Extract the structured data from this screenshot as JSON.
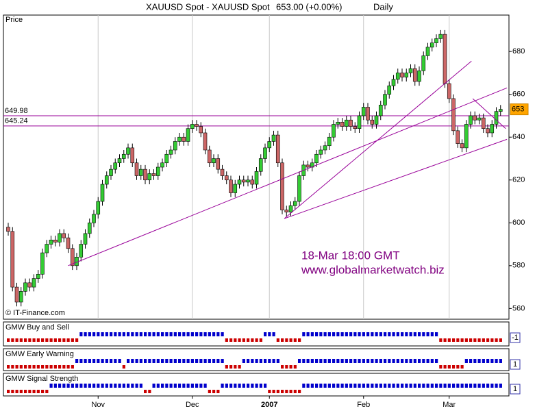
{
  "chart_data": {
    "type": "candlestick",
    "title": "XAUUSD Spot - XAUUSD Spot",
    "last_quote": "653.00 (+0.00%)",
    "period": "Daily",
    "panel_label": "Price",
    "copyright": "© IT-Finance.com",
    "annotations": [
      "18-Mar 18:00 GMT",
      "www.globalmarketwatch.biz"
    ],
    "categories": [
      null,
      null,
      null,
      null,
      null,
      null,
      null,
      null,
      null,
      null,
      null,
      null,
      null,
      null,
      null,
      null,
      null,
      null,
      null,
      null,
      null,
      "Nov",
      null,
      null,
      null,
      null,
      null,
      null,
      null,
      null,
      null,
      null,
      null,
      null,
      null,
      null,
      null,
      null,
      null,
      null,
      null,
      null,
      null,
      "Dec",
      null,
      null,
      null,
      null,
      null,
      null,
      null,
      null,
      null,
      null,
      null,
      null,
      null,
      null,
      null,
      null,
      null,
      "2007",
      null,
      null,
      null,
      null,
      null,
      null,
      null,
      null,
      null,
      null,
      null,
      null,
      null,
      null,
      null,
      null,
      null,
      null,
      null,
      null,
      null,
      "Feb",
      null,
      null,
      null,
      null,
      null,
      null,
      null,
      null,
      null,
      null,
      null,
      null,
      null,
      null,
      null,
      null,
      null,
      null,
      null,
      "Mar",
      null,
      null,
      null,
      null,
      null,
      null,
      null,
      null,
      null,
      null,
      null,
      null
    ],
    "open": [
      598,
      596,
      570,
      563,
      568,
      572,
      570,
      574,
      576,
      586,
      590,
      592,
      591,
      595,
      593,
      588,
      580,
      584,
      590,
      595,
      600,
      604,
      610,
      618,
      622,
      625,
      628,
      630,
      632,
      635,
      628,
      622,
      625,
      620,
      623,
      622,
      626,
      628,
      632,
      634,
      638,
      640,
      638,
      644,
      646,
      645,
      642,
      634,
      628,
      630,
      625,
      622,
      620,
      614,
      618,
      620,
      619,
      620,
      618,
      624,
      630,
      635,
      638,
      641,
      628,
      606,
      605,
      608,
      610,
      622,
      627,
      626,
      628,
      632,
      634,
      636,
      640,
      646,
      647,
      645,
      648,
      645,
      644,
      650,
      654,
      648,
      646,
      650,
      655,
      660,
      664,
      667,
      670,
      668,
      670,
      672,
      666,
      671,
      678,
      682,
      684,
      686,
      688,
      665,
      658,
      643,
      637,
      635,
      646,
      650,
      648,
      649,
      644,
      642,
      646,
      652
    ],
    "high": [
      600,
      598,
      572,
      570,
      574,
      574,
      576,
      578,
      588,
      592,
      594,
      594,
      597,
      597,
      595,
      590,
      586,
      592,
      597,
      602,
      606,
      612,
      620,
      624,
      627,
      630,
      632,
      634,
      637,
      637,
      630,
      627,
      627,
      625,
      625,
      628,
      630,
      634,
      636,
      640,
      642,
      642,
      646,
      648,
      648,
      647,
      644,
      636,
      632,
      632,
      627,
      624,
      622,
      620,
      622,
      622,
      622,
      622,
      626,
      632,
      637,
      640,
      643,
      643,
      630,
      608,
      610,
      612,
      624,
      629,
      629,
      630,
      634,
      636,
      638,
      642,
      648,
      649,
      649,
      650,
      650,
      647,
      652,
      656,
      656,
      650,
      652,
      657,
      662,
      666,
      669,
      672,
      672,
      672,
      674,
      674,
      673,
      680,
      684,
      686,
      688,
      690,
      690,
      667,
      660,
      645,
      639,
      648,
      652,
      652,
      651,
      651,
      646,
      648,
      654,
      655
    ],
    "low": [
      594,
      568,
      561,
      561,
      566,
      568,
      568,
      572,
      574,
      584,
      588,
      589,
      589,
      591,
      586,
      578,
      578,
      582,
      588,
      593,
      598,
      602,
      608,
      616,
      620,
      623,
      626,
      628,
      630,
      626,
      620,
      620,
      618,
      618,
      620,
      620,
      624,
      626,
      630,
      632,
      636,
      636,
      636,
      642,
      643,
      640,
      632,
      626,
      626,
      623,
      620,
      618,
      612,
      612,
      616,
      617,
      617,
      616,
      616,
      622,
      628,
      633,
      636,
      626,
      604,
      603,
      603,
      606,
      608,
      620,
      624,
      624,
      626,
      630,
      632,
      634,
      638,
      644,
      643,
      643,
      643,
      642,
      642,
      648,
      646,
      644,
      644,
      648,
      653,
      658,
      662,
      665,
      666,
      666,
      668,
      664,
      664,
      669,
      676,
      680,
      682,
      684,
      663,
      656,
      641,
      635,
      633,
      633,
      644,
      646,
      646,
      642,
      640,
      640,
      644,
      650
    ],
    "close": [
      596,
      570,
      563,
      568,
      572,
      570,
      574,
      576,
      586,
      590,
      592,
      591,
      595,
      593,
      588,
      580,
      584,
      590,
      595,
      600,
      604,
      610,
      618,
      622,
      625,
      628,
      630,
      632,
      635,
      628,
      622,
      625,
      620,
      623,
      622,
      626,
      628,
      632,
      634,
      638,
      640,
      638,
      644,
      646,
      645,
      642,
      634,
      628,
      630,
      625,
      622,
      620,
      614,
      618,
      620,
      619,
      620,
      618,
      624,
      630,
      635,
      638,
      641,
      628,
      606,
      605,
      608,
      610,
      622,
      627,
      626,
      628,
      632,
      634,
      636,
      640,
      646,
      647,
      645,
      648,
      645,
      644,
      650,
      654,
      648,
      646,
      650,
      655,
      660,
      664,
      667,
      670,
      668,
      670,
      672,
      666,
      671,
      678,
      682,
      684,
      686,
      688,
      665,
      658,
      643,
      637,
      635,
      646,
      650,
      648,
      649,
      644,
      642,
      646,
      652,
      653
    ],
    "up_color": "#33cc33",
    "down_color": "#cc6666",
    "ylim": [
      555,
      697
    ],
    "yticks": [
      560,
      580,
      600,
      620,
      640,
      660,
      680
    ],
    "xgrid": true,
    "levels": [
      649.98,
      645.24
    ],
    "price_marker": 653,
    "line_color": "#990099",
    "trendlines": [
      {
        "x": [
          14,
          116.5
        ],
        "y": [
          580,
          663
        ]
      },
      {
        "x": [
          64.5,
          108.2
        ],
        "y": [
          602,
          675.5
        ]
      },
      {
        "x": [
          64.5,
          116.5
        ],
        "y": [
          602,
          639
        ]
      },
      {
        "x": [
          108.5,
          116.2
        ],
        "y": [
          658,
          644
        ]
      }
    ],
    "indicators": [
      {
        "name": "GMW Buy and Sell",
        "title_color": "#cc0000",
        "last": -1,
        "values": [
          -1,
          -1,
          -1,
          -1,
          -1,
          -1,
          -1,
          -1,
          -1,
          -1,
          -1,
          -1,
          -1,
          -1,
          -1,
          -1,
          -1,
          1,
          1,
          1,
          1,
          1,
          1,
          1,
          1,
          1,
          1,
          1,
          1,
          1,
          1,
          1,
          1,
          1,
          1,
          1,
          1,
          1,
          1,
          1,
          1,
          1,
          1,
          1,
          1,
          1,
          1,
          1,
          1,
          1,
          1,
          -1,
          -1,
          -1,
          -1,
          -1,
          -1,
          -1,
          -1,
          -1,
          1,
          1,
          1,
          -1,
          -1,
          -1,
          -1,
          -1,
          -1,
          1,
          1,
          1,
          1,
          1,
          1,
          1,
          1,
          1,
          1,
          1,
          1,
          1,
          1,
          1,
          1,
          1,
          1,
          1,
          1,
          1,
          1,
          1,
          1,
          1,
          1,
          1,
          1,
          1,
          1,
          1,
          1,
          -1,
          -1,
          -1,
          -1,
          -1,
          -1,
          -1,
          -1,
          -1,
          -1,
          -1,
          -1,
          -1,
          -1,
          -1
        ]
      },
      {
        "name": "GMW Early Warning",
        "title_color": "#000066",
        "last": 1,
        "values": [
          -1,
          -1,
          -1,
          -1,
          -1,
          -1,
          -1,
          -1,
          -1,
          -1,
          -1,
          -1,
          -1,
          -1,
          -1,
          -1,
          1,
          1,
          1,
          1,
          1,
          1,
          1,
          1,
          1,
          1,
          1,
          -1,
          1,
          1,
          1,
          1,
          1,
          1,
          1,
          1,
          1,
          1,
          1,
          1,
          1,
          1,
          1,
          1,
          1,
          1,
          1,
          1,
          1,
          1,
          1,
          -1,
          -1,
          -1,
          -1,
          1,
          1,
          1,
          1,
          1,
          1,
          1,
          1,
          1,
          -1,
          -1,
          -1,
          -1,
          1,
          1,
          1,
          1,
          1,
          1,
          1,
          1,
          1,
          1,
          1,
          1,
          1,
          1,
          1,
          1,
          1,
          1,
          1,
          1,
          1,
          1,
          1,
          1,
          1,
          1,
          1,
          1,
          1,
          1,
          1,
          1,
          1,
          -1,
          -1,
          -1,
          -1,
          -1,
          -1,
          1,
          1,
          1,
          1,
          1,
          1,
          1,
          1,
          1
        ]
      },
      {
        "name": "GMW Signal Strength",
        "title_color": "#000066",
        "last": 1,
        "values": [
          -1,
          -1,
          -1,
          -1,
          -1,
          -1,
          -1,
          -1,
          -1,
          -1,
          1,
          1,
          1,
          1,
          1,
          1,
          1,
          1,
          1,
          1,
          1,
          1,
          1,
          1,
          1,
          1,
          1,
          1,
          1,
          1,
          1,
          1,
          -1,
          -1,
          1,
          1,
          1,
          1,
          1,
          1,
          1,
          1,
          1,
          1,
          1,
          1,
          1,
          -1,
          -1,
          -1,
          1,
          1,
          1,
          1,
          1,
          1,
          1,
          1,
          1,
          1,
          1,
          -1,
          -1,
          -1,
          -1,
          -1,
          -1,
          -1,
          -1,
          1,
          1,
          1,
          1,
          1,
          1,
          1,
          1,
          1,
          1,
          1,
          1,
          1,
          1,
          1,
          1,
          1,
          1,
          1,
          1,
          1,
          1,
          1,
          1,
          1,
          1,
          1,
          1,
          1,
          1,
          1,
          1,
          1,
          1,
          1,
          1,
          1,
          1,
          1,
          1,
          1,
          1,
          1,
          1,
          1,
          1,
          1
        ]
      }
    ],
    "buy_color": "#0000cc",
    "sell_color": "#cc0000"
  }
}
